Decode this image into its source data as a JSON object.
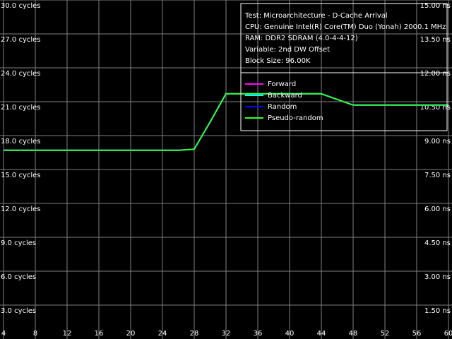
{
  "chart_data": {
    "type": "line",
    "info": [
      "Test: Microarchitecture - D-Cache Arrival",
      "CPU: Genuine Intel(R) Core(TM) Duo (Yonah) 2000.1 MHz",
      "RAM: DDR2 SDRAM (4.0-4-4-12)",
      "Variable: 2nd DW Offset",
      "Block Size: 96.00K"
    ],
    "x": [
      4,
      6,
      8,
      10,
      12,
      14,
      16,
      18,
      20,
      22,
      24,
      26,
      28,
      30,
      32,
      34,
      36,
      38,
      40,
      42,
      44,
      46,
      48,
      50,
      52,
      54,
      56,
      58,
      60
    ],
    "series": [
      {
        "name": "Forward",
        "color": "#ff00ff",
        "values": [
          16.7,
          16.7,
          16.7,
          16.7,
          16.7,
          16.7,
          16.7,
          16.7,
          16.7,
          16.7,
          16.7,
          16.7,
          16.8,
          19.2,
          21.7,
          21.7,
          21.7,
          21.7,
          21.7,
          21.7,
          21.7,
          21.2,
          20.7,
          20.7,
          20.7,
          20.7,
          20.7,
          20.7,
          20.7
        ]
      },
      {
        "name": "Backward",
        "color": "#00ffff",
        "values": [
          16.7,
          16.7,
          16.7,
          16.7,
          16.7,
          16.7,
          16.7,
          16.7,
          16.7,
          16.7,
          16.7,
          16.7,
          16.8,
          19.2,
          21.7,
          21.7,
          21.7,
          21.7,
          21.7,
          21.7,
          21.7,
          21.2,
          20.7,
          20.7,
          20.7,
          20.7,
          20.7,
          20.7,
          20.7
        ]
      },
      {
        "name": "Random",
        "color": "#0000ff",
        "values": [
          16.7,
          16.7,
          16.7,
          16.7,
          16.7,
          16.7,
          16.7,
          16.7,
          16.7,
          16.7,
          16.7,
          16.7,
          16.8,
          19.2,
          21.7,
          21.7,
          21.7,
          21.7,
          21.7,
          21.7,
          21.7,
          21.2,
          20.7,
          20.7,
          20.7,
          20.7,
          20.7,
          20.7,
          20.7
        ]
      },
      {
        "name": "Pseudo-random",
        "color": "#33ff33",
        "values": [
          16.7,
          16.7,
          16.7,
          16.7,
          16.7,
          16.7,
          16.7,
          16.7,
          16.7,
          16.7,
          16.7,
          16.7,
          16.8,
          19.2,
          21.7,
          21.7,
          21.7,
          21.7,
          21.7,
          21.7,
          21.7,
          21.2,
          20.7,
          20.7,
          20.7,
          20.7,
          20.7,
          20.7,
          20.7
        ]
      }
    ],
    "xlim": [
      4,
      60
    ],
    "xticks": [
      4,
      8,
      12,
      16,
      20,
      24,
      28,
      32,
      36,
      40,
      44,
      48,
      52,
      56,
      60
    ],
    "ylim": [
      0,
      30
    ],
    "yticks": [
      {
        "value": 3,
        "label": "3.0 cycles"
      },
      {
        "value": 6,
        "label": "6.0 cycles"
      },
      {
        "value": 9,
        "label": "9.0 cycles"
      },
      {
        "value": 12,
        "label": "12.0 cycles"
      },
      {
        "value": 15,
        "label": "15.0 cycles"
      },
      {
        "value": 18,
        "label": "18.0 cycles"
      },
      {
        "value": 21,
        "label": "21.0 cycles"
      },
      {
        "value": 24,
        "label": "24.0 cycles"
      },
      {
        "value": 27,
        "label": "27.0 cycles"
      },
      {
        "value": 30,
        "label": "30.0 cycles"
      }
    ],
    "y2lim": [
      0,
      15
    ],
    "y2ticks": [
      {
        "value": 1.5,
        "label": "1.50 ns"
      },
      {
        "value": 3,
        "label": "3.00 ns"
      },
      {
        "value": 4.5,
        "label": "4.50 ns"
      },
      {
        "value": 6,
        "label": "6.00 ns"
      },
      {
        "value": 7.5,
        "label": "7.50 ns"
      },
      {
        "value": 9,
        "label": "9.00 ns"
      },
      {
        "value": 10.5,
        "label": "10.50 ns"
      },
      {
        "value": 12,
        "label": "12.00 ns"
      },
      {
        "value": 13.5,
        "label": "13.50 ns"
      },
      {
        "value": 15,
        "label": "15.00 ns"
      }
    ],
    "grid": true
  }
}
